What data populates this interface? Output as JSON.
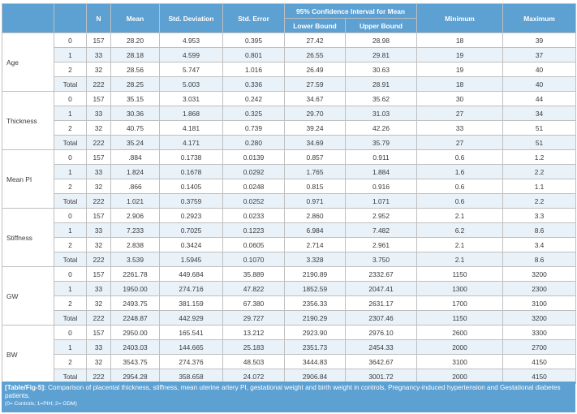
{
  "header": {
    "n": "N",
    "mean": "Mean",
    "sd": "Std. Deviation",
    "se": "Std. Error",
    "ci": "95% Confidence Interval for Mean",
    "lower": "Lower Bound",
    "upper": "Upper Bound",
    "min": "Minimum",
    "max": "Maximum"
  },
  "groups": [
    {
      "name": "Age",
      "rows": [
        [
          "0",
          "157",
          "28.20",
          "4.953",
          "0.395",
          "27.42",
          "28.98",
          "18",
          "39"
        ],
        [
          "1",
          "33",
          "28.18",
          "4.599",
          "0.801",
          "26.55",
          "29.81",
          "19",
          "37"
        ],
        [
          "2",
          "32",
          "28.56",
          "5.747",
          "1.016",
          "26.49",
          "30.63",
          "19",
          "40"
        ],
        [
          "Total",
          "222",
          "28.25",
          "5.003",
          "0.336",
          "27.59",
          "28.91",
          "18",
          "40"
        ]
      ]
    },
    {
      "name": "Thickness",
      "rows": [
        [
          "0",
          "157",
          "35.15",
          "3.031",
          "0.242",
          "34.67",
          "35.62",
          "30",
          "44"
        ],
        [
          "1",
          "33",
          "30.36",
          "1.868",
          "0.325",
          "29.70",
          "31.03",
          "27",
          "34"
        ],
        [
          "2",
          "32",
          "40.75",
          "4.181",
          "0.739",
          "39.24",
          "42.26",
          "33",
          "51"
        ],
        [
          "Total",
          "222",
          "35.24",
          "4.171",
          "0.280",
          "34.69",
          "35.79",
          "27",
          "51"
        ]
      ]
    },
    {
      "name": "Mean PI",
      "rows": [
        [
          "0",
          "157",
          ".884",
          "0.1738",
          "0.0139",
          "0.857",
          "0.911",
          "0.6",
          "1.2"
        ],
        [
          "1",
          "33",
          "1.824",
          "0.1678",
          "0.0292",
          "1.765",
          "1.884",
          "1.6",
          "2.2"
        ],
        [
          "2",
          "32",
          ".866",
          "0.1405",
          "0.0248",
          "0.815",
          "0.916",
          "0.6",
          "1.1"
        ],
        [
          "Total",
          "222",
          "1.021",
          "0.3759",
          "0.0252",
          "0.971",
          "1.071",
          "0.6",
          "2.2"
        ]
      ]
    },
    {
      "name": "Stiffness",
      "rows": [
        [
          "0",
          "157",
          "2.906",
          "0.2923",
          "0.0233",
          "2.860",
          "2.952",
          "2.1",
          "3.3"
        ],
        [
          "1",
          "33",
          "7.233",
          "0.7025",
          "0.1223",
          "6.984",
          "7.482",
          "6.2",
          "8.6"
        ],
        [
          "2",
          "32",
          "2.838",
          "0.3424",
          "0.0605",
          "2.714",
          "2.961",
          "2.1",
          "3.4"
        ],
        [
          "Total",
          "222",
          "3.539",
          "1.5945",
          "0.1070",
          "3.328",
          "3.750",
          "2.1",
          "8.6"
        ]
      ]
    },
    {
      "name": "GW",
      "rows": [
        [
          "0",
          "157",
          "2261.78",
          "449.684",
          "35.889",
          "2190.89",
          "2332.67",
          "1150",
          "3200"
        ],
        [
          "1",
          "33",
          "1950.00",
          "274.716",
          "47.822",
          "1852.59",
          "2047.41",
          "1300",
          "2300"
        ],
        [
          "2",
          "32",
          "2493.75",
          "381.159",
          "67.380",
          "2356.33",
          "2631.17",
          "1700",
          "3100"
        ],
        [
          "Total",
          "222",
          "2248.87",
          "442.929",
          "29.727",
          "2190.29",
          "2307.46",
          "1150",
          "3200"
        ]
      ]
    },
    {
      "name": "BW",
      "rows": [
        [
          "0",
          "157",
          "2950.00",
          "165.541",
          "13.212",
          "2923.90",
          "2976.10",
          "2600",
          "3300"
        ],
        [
          "1",
          "33",
          "2403.03",
          "144.665",
          "25.183",
          "2351.73",
          "2454.33",
          "2000",
          "2700"
        ],
        [
          "2",
          "32",
          "3543.75",
          "274.376",
          "48.503",
          "3444.83",
          "3642.67",
          "3100",
          "4150"
        ],
        [
          "Total",
          "222",
          "2954.28",
          "358.658",
          "24.072",
          "2906.84",
          "3001.72",
          "2000",
          "4150"
        ]
      ]
    }
  ],
  "caption": {
    "label": "[Table/Fig-5]:",
    "text": " Comparison of placental thickness, stiffness, mean uterine artery PI, gestational weight and birth weight in controls, Pregnancy-induced hypertension and Gestational diabetes patients.",
    "note": "(0= Controls; 1=PIH; 2= GDM)"
  },
  "colors": {
    "header_bg": "#5da0d2",
    "stripe": "#e9f2f9",
    "border": "#bfbfbf"
  }
}
